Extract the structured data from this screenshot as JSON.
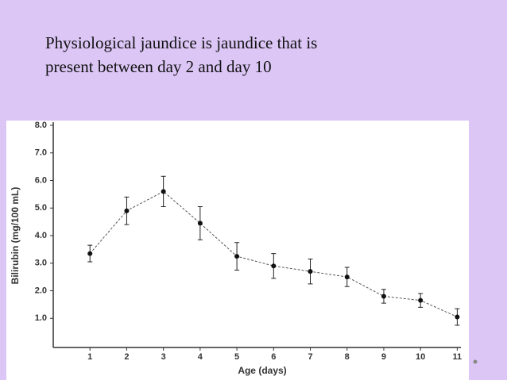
{
  "slide_text": [
    "Physiological jaundice is jaundice that is",
    "present between day 2 and day 10"
  ],
  "chart_data": {
    "type": "line",
    "x_label": "Age (days)",
    "y_label": "Bilirubin (mg/100 mL)",
    "x": [
      1,
      2,
      3,
      4,
      5,
      6,
      7,
      8,
      9,
      10,
      11
    ],
    "series": [
      {
        "color": "#111111",
        "values": [
          3.35,
          4.9,
          5.6,
          4.45,
          3.25,
          2.9,
          2.7,
          2.5,
          1.8,
          1.65,
          1.05
        ],
        "errors": [
          0.3,
          0.5,
          0.55,
          0.6,
          0.5,
          0.45,
          0.45,
          0.35,
          0.25,
          0.25,
          0.3
        ]
      }
    ],
    "xlim": [
      0,
      11.1
    ],
    "xticks": [
      1,
      2,
      3,
      4,
      5,
      6,
      7,
      8,
      9,
      10,
      11
    ],
    "ylim": [
      0,
      8
    ],
    "yticks": [
      {
        "value": 1,
        "label": "1.0"
      },
      {
        "value": 2,
        "label": "2.0"
      },
      {
        "value": 3,
        "label": "3.0"
      },
      {
        "value": 4,
        "label": "4.0"
      },
      {
        "value": 5,
        "label": "5.0"
      },
      {
        "value": 6,
        "label": "6.0"
      },
      {
        "value": 7,
        "label": "7.0"
      },
      {
        "value": 8,
        "label": "8.0"
      }
    ],
    "grid": false
  }
}
